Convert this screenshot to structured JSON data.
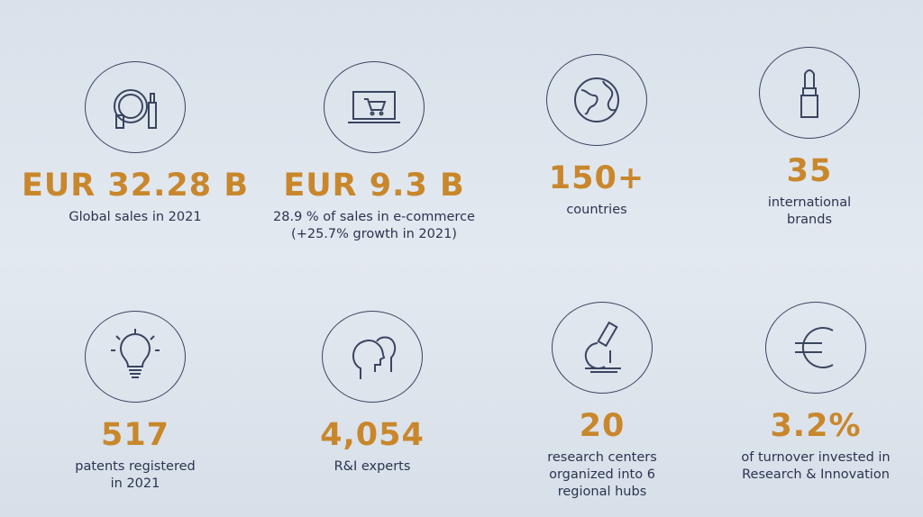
{
  "stats": [
    {
      "icon": "cosmetics-mirror-icon",
      "value": "EUR 32.28 B",
      "desc": [
        "Global sales in 2021"
      ]
    },
    {
      "icon": "laptop-cart-icon",
      "value": "EUR 9.3 B",
      "desc": [
        "28.9 % of sales in e-commerce",
        "(+25.7% growth in 2021)"
      ]
    },
    {
      "icon": "globe-icon",
      "value": "150+",
      "desc": [
        "countries"
      ]
    },
    {
      "icon": "lipstick-icon",
      "value": "35",
      "desc": [
        "international",
        "brands"
      ]
    },
    {
      "icon": "lightbulb-icon",
      "value": "517",
      "desc": [
        "patents registered",
        "in 2021"
      ]
    },
    {
      "icon": "heads-icon",
      "value": "4,054",
      "desc": [
        "R&I experts"
      ]
    },
    {
      "icon": "microscope-icon",
      "value": "20",
      "desc": [
        "research centers",
        "organized into 6",
        "regional hubs"
      ]
    },
    {
      "icon": "euro-icon",
      "value": "3.2%",
      "desc": [
        "of turnover invested in",
        "Research & Innovation"
      ]
    }
  ],
  "colors": {
    "accent": "#c9872c",
    "text": "#2b3450",
    "background": "#dfe6ee"
  }
}
